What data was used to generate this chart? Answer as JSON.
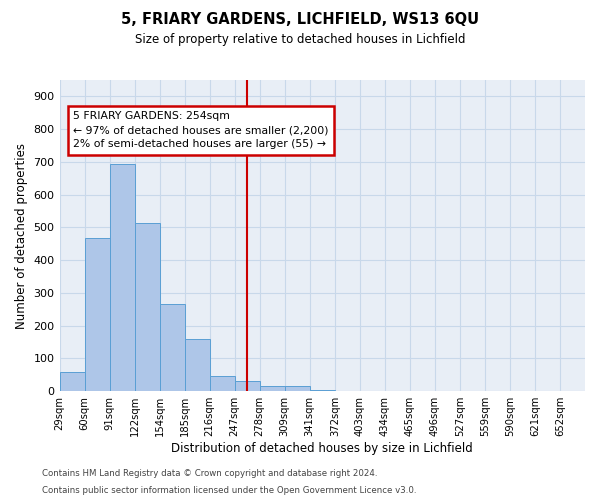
{
  "title_line1": "5, FRIARY GARDENS, LICHFIELD, WS13 6QU",
  "title_line2": "Size of property relative to detached houses in Lichfield",
  "xlabel": "Distribution of detached houses by size in Lichfield",
  "ylabel": "Number of detached properties",
  "footer_line1": "Contains HM Land Registry data © Crown copyright and database right 2024.",
  "footer_line2": "Contains public sector information licensed under the Open Government Licence v3.0.",
  "categories": [
    "29sqm",
    "60sqm",
    "91sqm",
    "122sqm",
    "154sqm",
    "185sqm",
    "216sqm",
    "247sqm",
    "278sqm",
    "309sqm",
    "341sqm",
    "372sqm",
    "403sqm",
    "434sqm",
    "465sqm",
    "496sqm",
    "527sqm",
    "559sqm",
    "590sqm",
    "621sqm",
    "652sqm"
  ],
  "bar_values": [
    58,
    468,
    695,
    515,
    265,
    160,
    45,
    30,
    15,
    15,
    5,
    0,
    0,
    0,
    0,
    0,
    0,
    0,
    0,
    0,
    0
  ],
  "bar_color": "#aec6e8",
  "bar_edge_color": "#5a9fd4",
  "vline_color": "#cc0000",
  "annotation_text": "5 FRIARY GARDENS: 254sqm\n← 97% of detached houses are smaller (2,200)\n2% of semi-detached houses are larger (55) →",
  "annotation_box_color": "#cc0000",
  "ylim_max": 950,
  "yticks": [
    0,
    100,
    200,
    300,
    400,
    500,
    600,
    700,
    800,
    900
  ],
  "grid_color": "#c8d8ea",
  "bg_color": "#e8eef6",
  "vline_position": 7.5
}
